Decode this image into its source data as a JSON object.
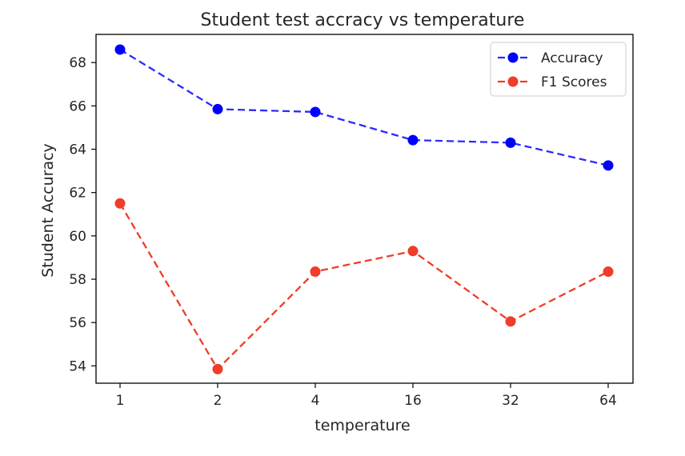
{
  "chart_data": {
    "type": "line",
    "title": "Student test accracy vs temperature",
    "xlabel": "temperature",
    "ylabel": "Student Accuracy",
    "categories": [
      "1",
      "2",
      "4",
      "16",
      "32",
      "64"
    ],
    "x_scale": "categorical",
    "ylim": [
      53.2,
      69.3
    ],
    "yticks": [
      54,
      56,
      58,
      60,
      62,
      64,
      66,
      68
    ],
    "grid": false,
    "legend_position": "top-right",
    "series": [
      {
        "name": "Accuracy",
        "color": "#0000ff",
        "line_color": "#2b2bff",
        "linestyle": "dashed",
        "marker": "circle",
        "values": [
          68.6,
          65.85,
          65.72,
          64.42,
          64.3,
          63.25
        ]
      },
      {
        "name": "F1 Scores",
        "color": "#f03c28",
        "line_color": "#f03c28",
        "linestyle": "dashed",
        "marker": "circle",
        "values": [
          61.5,
          53.85,
          58.35,
          59.3,
          56.05,
          58.35
        ]
      }
    ]
  }
}
